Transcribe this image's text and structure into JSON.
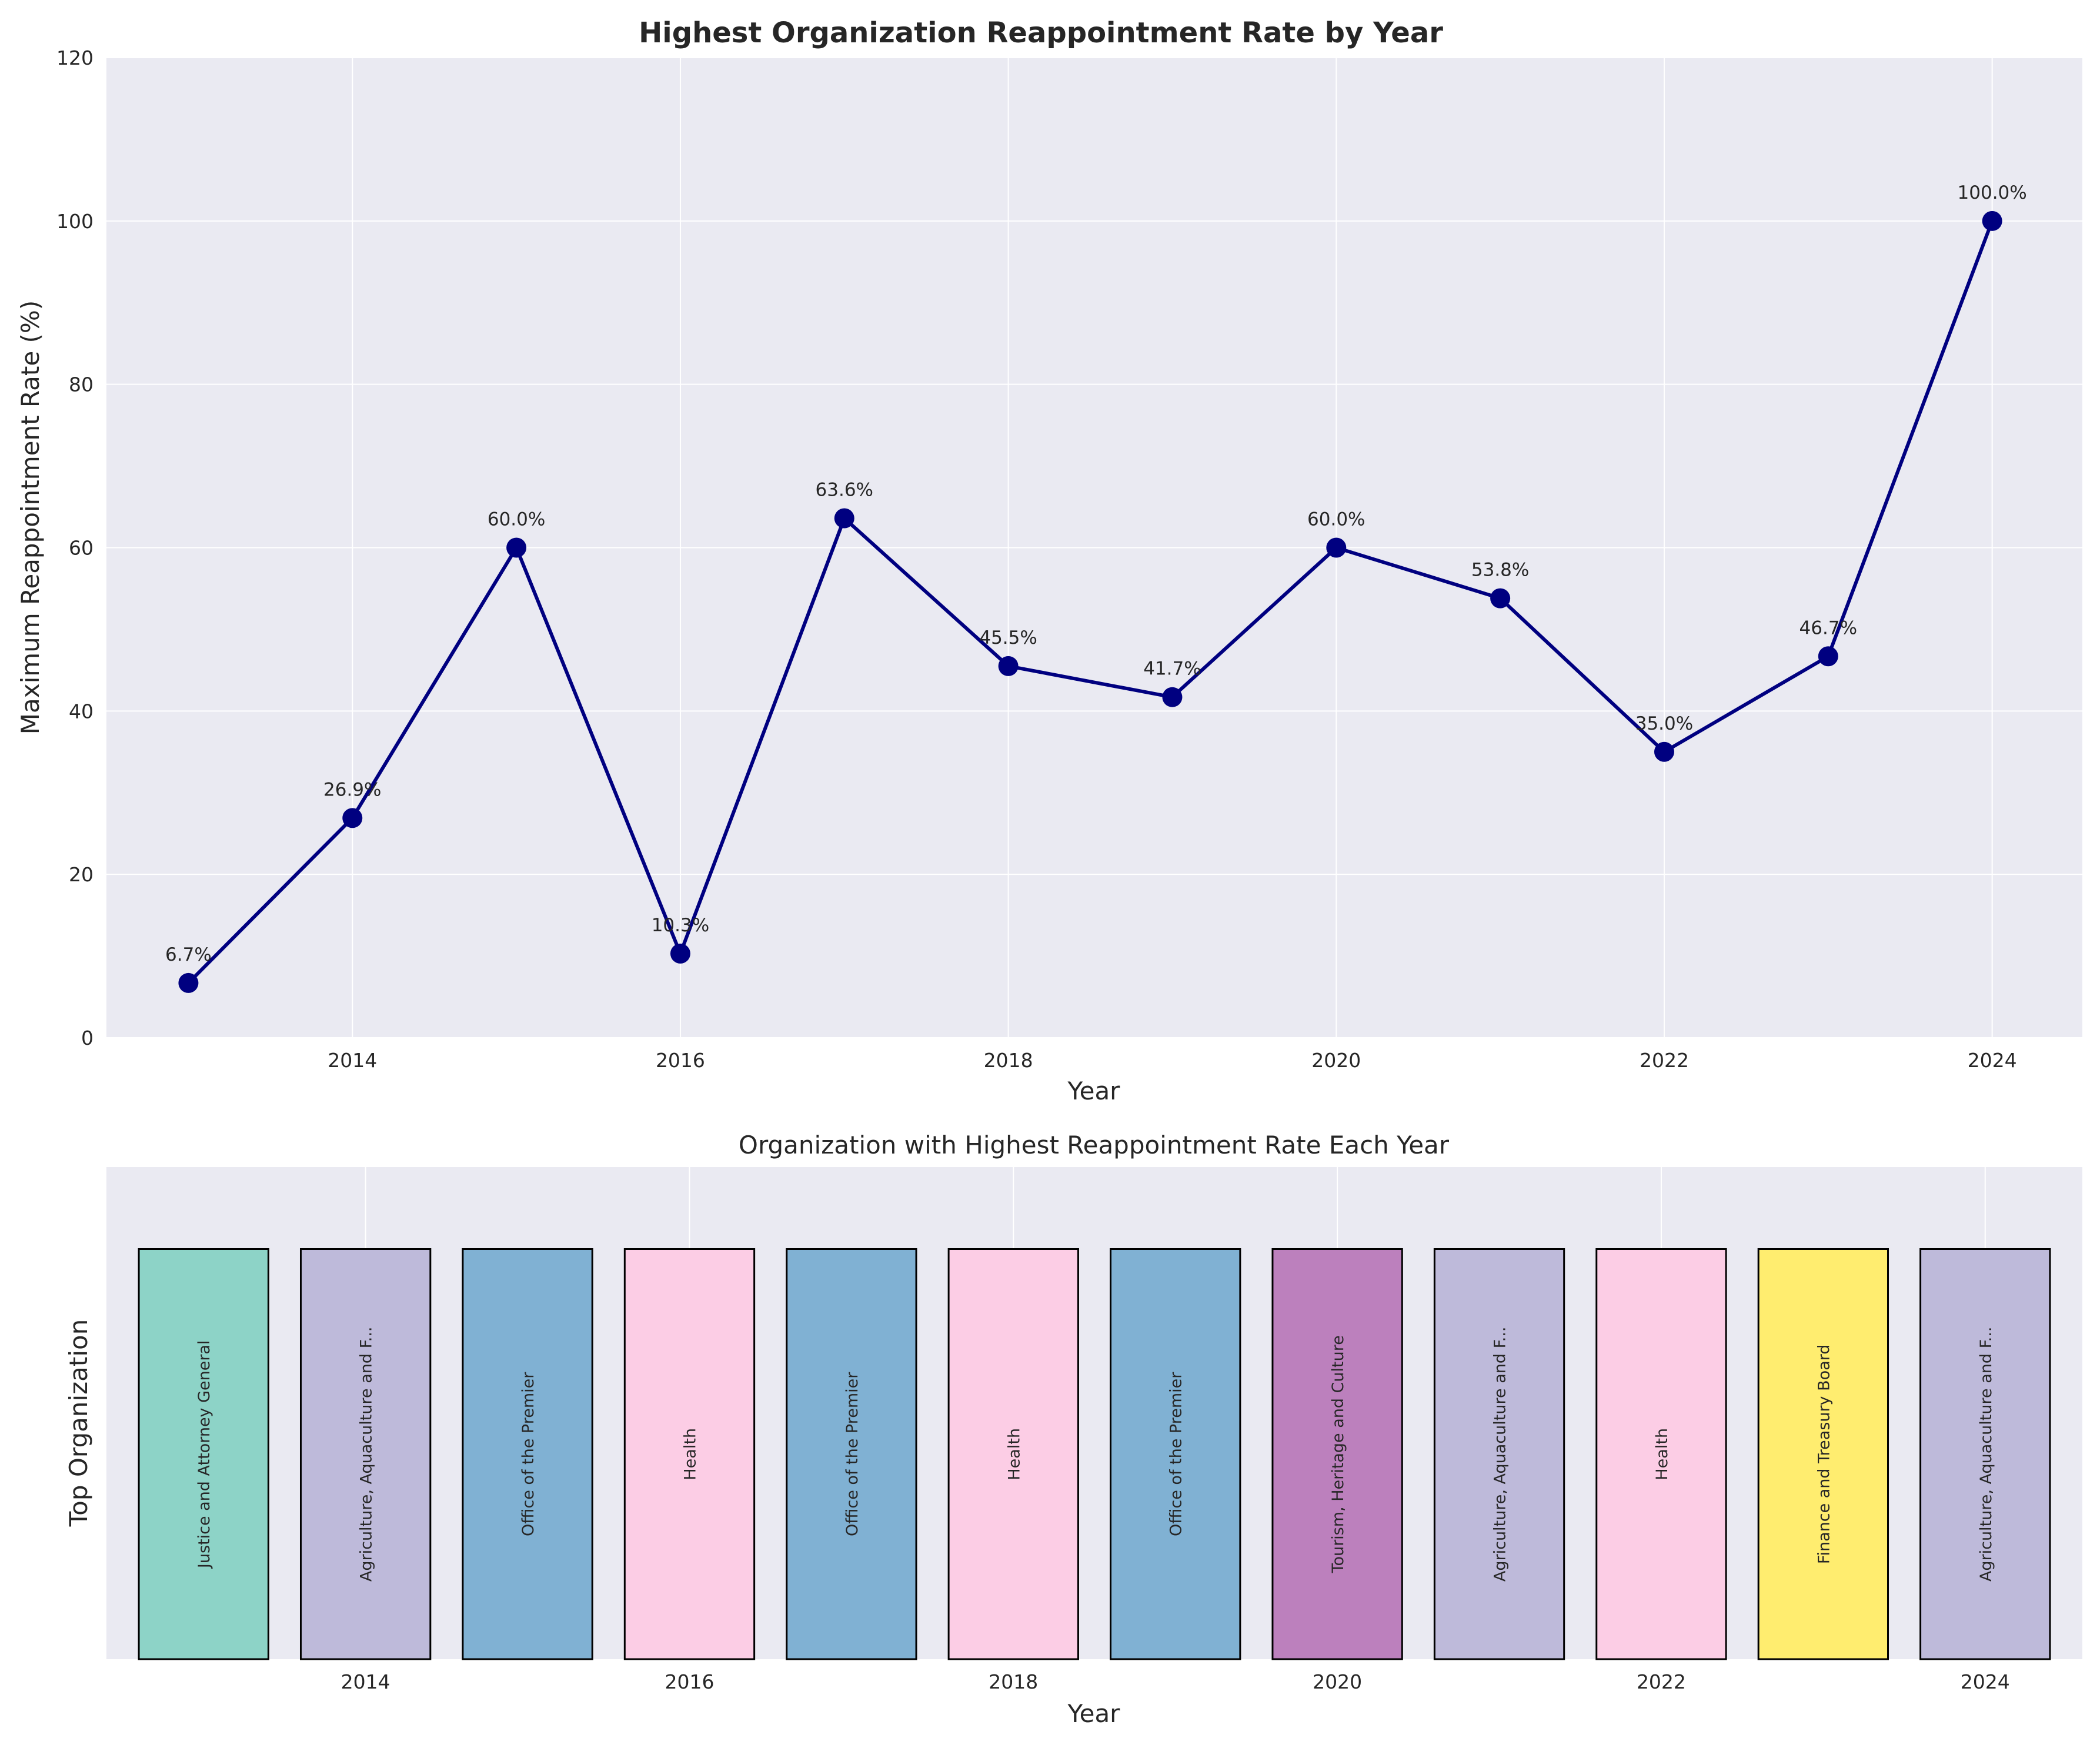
{
  "chart_data": [
    {
      "type": "line",
      "title": "Highest Organization Reappointment Rate by Year",
      "xlabel": "Year",
      "ylabel": "Maximum Reappointment Rate (%)",
      "xlim": [
        2012.5,
        2024.55
      ],
      "ylim": [
        0,
        120
      ],
      "x_ticks": [
        2014,
        2016,
        2018,
        2020,
        2022,
        2024
      ],
      "y_ticks": [
        0,
        20,
        40,
        60,
        80,
        100,
        120
      ],
      "grid": true,
      "x": [
        2013,
        2014,
        2015,
        2016,
        2017,
        2018,
        2019,
        2020,
        2021,
        2022,
        2023,
        2024
      ],
      "values": [
        6.7,
        26.9,
        60.0,
        10.3,
        63.6,
        45.5,
        41.7,
        60.0,
        53.8,
        35.0,
        46.7,
        100.0
      ],
      "data_labels": [
        "6.7%",
        "26.9%",
        "60.0%",
        "10.3%",
        "63.6%",
        "45.5%",
        "41.7%",
        "60.0%",
        "53.8%",
        "35.0%",
        "46.7%",
        "100.0%"
      ],
      "line_color": "#000080"
    },
    {
      "type": "bar",
      "title": "Organization with Highest Reappointment Rate Each Year",
      "xlabel": "Year",
      "ylabel": "Top Organization",
      "xlim": [
        2012.4,
        2024.6
      ],
      "x_ticks": [
        2014,
        2016,
        2018,
        2020,
        2022,
        2024
      ],
      "grid": true,
      "x": [
        2013,
        2014,
        2015,
        2016,
        2017,
        2018,
        2019,
        2020,
        2021,
        2022,
        2023,
        2024
      ],
      "bar_value": 1,
      "ylim": [
        0,
        1.2
      ],
      "organizations": [
        "Justice and Attorney General",
        "Agriculture, Aquaculture and F...",
        "Office of the Premier",
        "Health",
        "Office of the Premier",
        "Health",
        "Office of the Premier",
        "Tourism, Heritage and Culture",
        "Agriculture, Aquaculture and F...",
        "Health",
        "Finance and Treasury Board",
        "Agriculture, Aquaculture and F..."
      ],
      "bar_colors": [
        "#8dd3c7",
        "#bebada",
        "#80b1d3",
        "#fccde5",
        "#80b1d3",
        "#fccde5",
        "#80b1d3",
        "#bc80bd",
        "#bebada",
        "#fccde5",
        "#ffed6f",
        "#bebada"
      ]
    }
  ],
  "colors": {
    "plot_background": "#eaeaf2",
    "grid": "#ffffff",
    "edge": "#000000"
  }
}
